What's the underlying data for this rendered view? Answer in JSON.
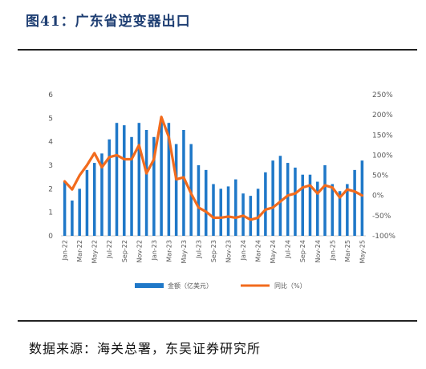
{
  "title": "图41：广东省逆变器出口",
  "source": "数据来源：海关总署，东吴证券研究所",
  "colors": {
    "bar": "#1f78c8",
    "line": "#f26b1d",
    "axis_text": "#595959",
    "title": "#1f3f73"
  },
  "chart_data": {
    "type": "bar",
    "categories": [
      "Jan-22",
      "Feb-22",
      "Mar-22",
      "Apr-22",
      "May-22",
      "Jun-22",
      "Jul-22",
      "Aug-22",
      "Sep-22",
      "Oct-22",
      "Nov-22",
      "Dec-22",
      "Jan-23",
      "Feb-23",
      "Mar-23",
      "Apr-23",
      "May-23",
      "Jun-23",
      "Jul-23",
      "Aug-23",
      "Sep-23",
      "Oct-23",
      "Nov-23",
      "Dec-23",
      "Jan-24",
      "Feb-24",
      "Mar-24",
      "Apr-24",
      "May-24",
      "Jun-24",
      "Jul-24",
      "Aug-24",
      "Sep-24",
      "Oct-24",
      "Nov-24",
      "Dec-24",
      "Jan-25",
      "Feb-25",
      "Mar-25",
      "Apr-25",
      "May-25"
    ],
    "tick_labels": [
      "Jan-22",
      "Mar-22",
      "May-22",
      "Jul-22",
      "Sep-22",
      "Nov-22",
      "Jan-23",
      "Mar-23",
      "May-23",
      "Jul-23",
      "Sep-23",
      "Nov-23",
      "Jan-24",
      "Mar-24",
      "May-24",
      "Jul-24",
      "Sep-24",
      "Nov-24",
      "Jan-25",
      "Mar-25",
      "May-25"
    ],
    "series": [
      {
        "name": "金额（亿美元）",
        "type": "bar",
        "axis": "left",
        "values": [
          2.3,
          1.5,
          2.0,
          2.8,
          3.1,
          3.5,
          4.1,
          4.8,
          4.7,
          4.2,
          4.8,
          4.5,
          4.2,
          4.9,
          4.8,
          3.9,
          4.5,
          3.9,
          3.0,
          2.8,
          2.2,
          2.0,
          2.1,
          2.4,
          1.8,
          1.7,
          2.0,
          2.7,
          3.2,
          3.4,
          3.1,
          2.9,
          2.6,
          2.6,
          2.3,
          3.0,
          2.2,
          1.9,
          2.2,
          2.8,
          3.2
        ]
      },
      {
        "name": "同比（%）",
        "type": "line",
        "axis": "right",
        "values": [
          35,
          15,
          50,
          75,
          105,
          70,
          95,
          100,
          90,
          90,
          125,
          55,
          90,
          195,
          145,
          40,
          45,
          5,
          -30,
          -40,
          -55,
          -55,
          -52,
          -55,
          -50,
          -60,
          -55,
          -35,
          -30,
          -15,
          0,
          5,
          20,
          25,
          5,
          25,
          20,
          -5,
          15,
          10,
          0
        ]
      }
    ],
    "y_left": {
      "min": 0,
      "max": 6,
      "ticks": [
        "0",
        "1",
        "2",
        "3",
        "4",
        "5",
        "6"
      ]
    },
    "y_right": {
      "min": -100,
      "max": 250,
      "ticks": [
        "-100%",
        "-50%",
        "0%",
        "50%",
        "100%",
        "150%",
        "200%",
        "250%"
      ]
    },
    "legend": [
      "金额（亿美元）",
      "同比（%）"
    ],
    "legend_position": "bottom",
    "grid": false
  }
}
